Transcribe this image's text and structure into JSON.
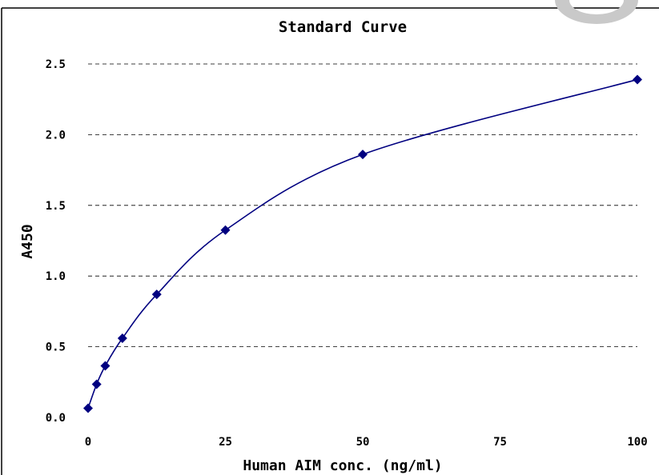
{
  "chart_data": {
    "type": "scatter",
    "title": "Standard Curve",
    "xlabel": "Human AIM conc. (ng/ml)",
    "ylabel": "A450",
    "xlim": [
      0,
      100
    ],
    "ylim": [
      0,
      2.5
    ],
    "x_ticks": [
      "0",
      "25",
      "50",
      "75",
      "100"
    ],
    "y_ticks": [
      "0.0",
      "0.5",
      "1.0",
      "1.5",
      "2.0",
      "2.5"
    ],
    "grid": "horizontal dashed",
    "marker": "diamond",
    "color": "#000080",
    "series": [
      {
        "x": [
          0,
          1.56,
          3.13,
          6.25,
          12.5,
          25,
          50,
          100
        ],
        "values": [
          0.065,
          0.235,
          0.365,
          0.56,
          0.87,
          1.325,
          1.86,
          2.39
        ]
      }
    ]
  }
}
